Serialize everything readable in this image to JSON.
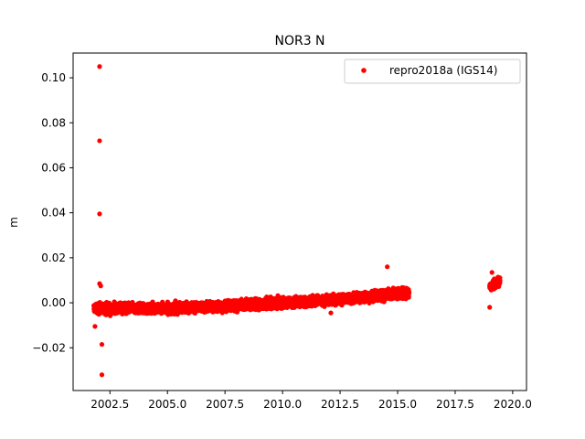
{
  "chart_data": {
    "type": "scatter",
    "title": "NOR3 N",
    "xlabel": "",
    "ylabel": "m",
    "xlim": [
      2000.9,
      2020.6
    ],
    "ylim": [
      -0.039,
      0.111
    ],
    "xticks": [
      2002.5,
      2005.0,
      2007.5,
      2010.0,
      2012.5,
      2015.0,
      2017.5,
      2020.0
    ],
    "xtick_labels": [
      "2002.5",
      "2005.0",
      "2007.5",
      "2010.0",
      "2012.5",
      "2015.0",
      "2017.5",
      "2020.0"
    ],
    "yticks": [
      -0.02,
      0.0,
      0.02,
      0.04,
      0.06,
      0.08,
      0.1
    ],
    "ytick_labels": [
      "−0.02",
      "0.00",
      "0.02",
      "0.04",
      "0.06",
      "0.08",
      "0.10"
    ],
    "grid": false,
    "legend_position": "top-right",
    "series": [
      {
        "name": "repro2018a (IGS14)",
        "color": "#ff0000",
        "marker": "circle",
        "segments": [
          {
            "x_start": 2001.8,
            "x_end": 2015.5,
            "trend": [
              [
                2001.8,
                -0.0025
              ],
              [
                2005.0,
                -0.0025
              ],
              [
                2007.5,
                -0.0015
              ],
              [
                2010.0,
                0.0
              ],
              [
                2012.5,
                0.0015
              ],
              [
                2015.5,
                0.0045
              ]
            ],
            "spread": 0.0022
          },
          {
            "x_start": 2019.0,
            "x_end": 2019.45,
            "trend": [
              [
                2019.0,
                0.007
              ],
              [
                2019.45,
                0.0095
              ]
            ],
            "spread": 0.0018
          }
        ],
        "outliers": [
          [
            2002.05,
            0.105
          ],
          [
            2002.05,
            0.072
          ],
          [
            2002.05,
            0.0395
          ],
          [
            2002.1,
            0.0075
          ],
          [
            2002.05,
            0.0085
          ],
          [
            2002.15,
            -0.0185
          ],
          [
            2002.15,
            -0.032
          ],
          [
            2001.85,
            -0.0105
          ],
          [
            2014.55,
            0.016
          ],
          [
            2019.0,
            -0.002
          ],
          [
            2019.1,
            0.0135
          ],
          [
            2012.1,
            -0.0045
          ]
        ]
      }
    ]
  }
}
